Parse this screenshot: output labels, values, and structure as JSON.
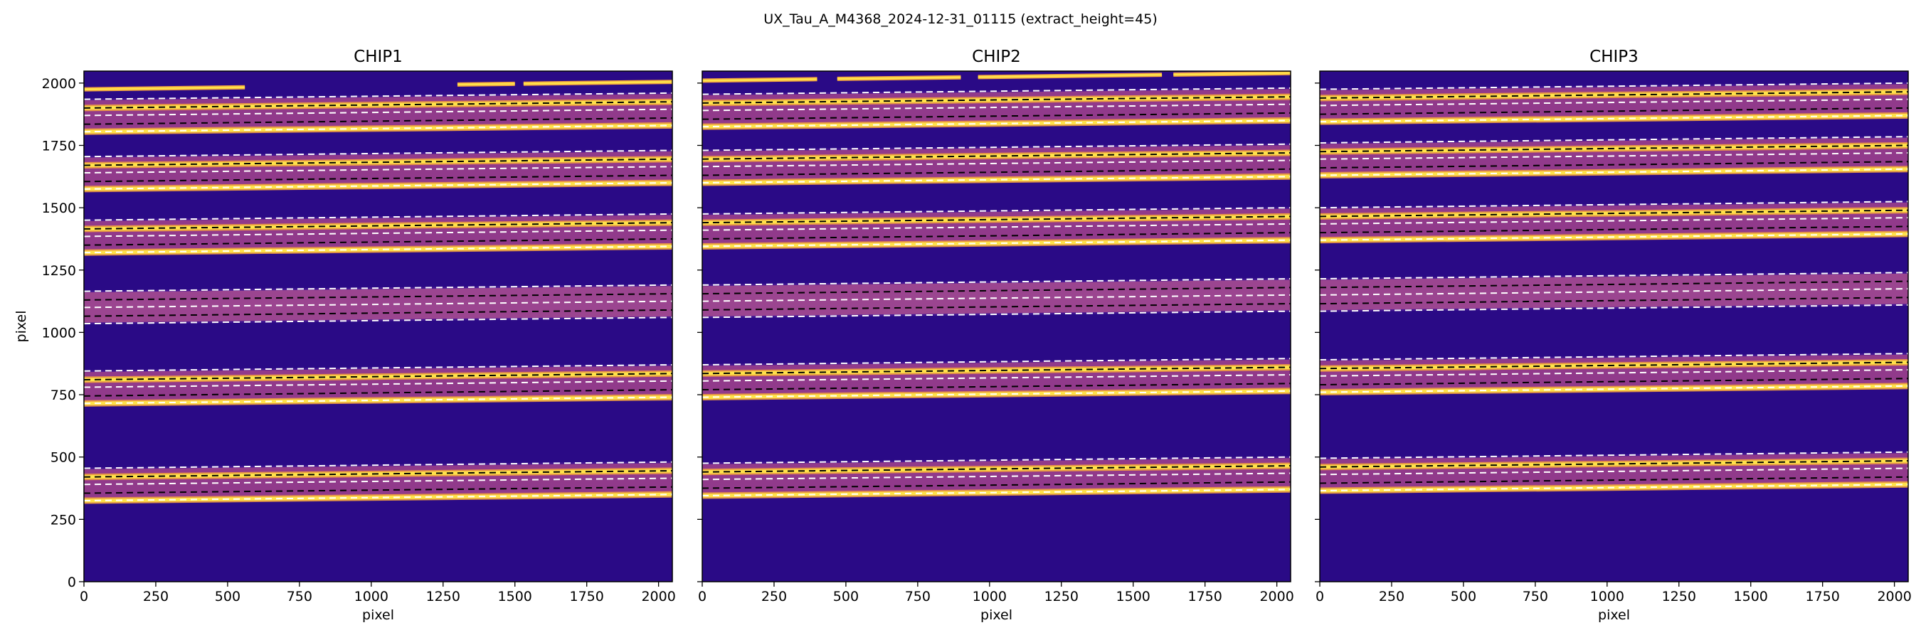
{
  "figure": {
    "suptitle": "UX_Tau_A_M4368_2024-12-31_01115  (extract_height=45)"
  },
  "colors": {
    "background": "#2a0a86",
    "band_faint": "#4a1a98",
    "band_mid": "#9a3e8a",
    "trace_bright": "#ffe24a",
    "trace_edge": "#f0a040",
    "dashed_line": "#ffffff",
    "center_line": "#000000"
  },
  "chart_data": [
    {
      "type": "heatmap",
      "title": "CHIP1",
      "xlabel": "pixel",
      "ylabel": "pixel",
      "xlim": [
        0,
        2048
      ],
      "ylim": [
        0,
        2048
      ],
      "xticks": [
        0,
        250,
        500,
        750,
        1000,
        1250,
        1500,
        1750,
        2000
      ],
      "yticks": [
        0,
        250,
        500,
        750,
        1000,
        1250,
        1500,
        1750,
        2000
      ],
      "orders": [
        {
          "center_left": 355,
          "center_right": 380,
          "lines": [
            -30,
            0,
            35,
            65,
            100
          ],
          "bright": [
            -30,
            65
          ]
        },
        {
          "center_left": 745,
          "center_right": 770,
          "lines": [
            -30,
            0,
            35,
            65,
            100
          ],
          "bright": [
            -30,
            65
          ]
        },
        {
          "center_left": 1065,
          "center_right": 1090,
          "lines": [
            -30,
            0,
            35,
            65,
            100
          ],
          "bright": []
        },
        {
          "center_left": 1350,
          "center_right": 1375,
          "lines": [
            -30,
            0,
            35,
            65,
            100
          ],
          "bright": [
            -30,
            65
          ]
        },
        {
          "center_left": 1605,
          "center_right": 1630,
          "lines": [
            -30,
            0,
            35,
            65,
            100
          ],
          "bright": [
            -30,
            65
          ]
        },
        {
          "center_left": 1835,
          "center_right": 1860,
          "lines": [
            -30,
            0,
            35,
            65,
            100
          ],
          "bright": [
            -30,
            65
          ]
        }
      ],
      "top_streak": {
        "y_left": 1975,
        "y_right": 2005
      }
    },
    {
      "type": "heatmap",
      "title": "CHIP2",
      "xlabel": "pixel",
      "ylabel": "",
      "xlim": [
        0,
        2048
      ],
      "ylim": [
        0,
        2048
      ],
      "xticks": [
        0,
        250,
        500,
        750,
        1000,
        1250,
        1500,
        1750,
        2000
      ],
      "yticks": [],
      "orders": [
        {
          "center_left": 375,
          "center_right": 400,
          "lines": [
            -30,
            0,
            35,
            65,
            100
          ],
          "bright": [
            -30,
            65
          ]
        },
        {
          "center_left": 770,
          "center_right": 795,
          "lines": [
            -30,
            0,
            35,
            65,
            100
          ],
          "bright": [
            -30,
            65
          ]
        },
        {
          "center_left": 1090,
          "center_right": 1115,
          "lines": [
            -30,
            0,
            35,
            65,
            100
          ],
          "bright": []
        },
        {
          "center_left": 1375,
          "center_right": 1400,
          "lines": [
            -30,
            0,
            35,
            65,
            100
          ],
          "bright": [
            -30,
            65
          ]
        },
        {
          "center_left": 1630,
          "center_right": 1655,
          "lines": [
            -30,
            0,
            35,
            65,
            100
          ],
          "bright": [
            -30,
            65
          ]
        },
        {
          "center_left": 1855,
          "center_right": 1880,
          "lines": [
            -30,
            0,
            35,
            65,
            100
          ],
          "bright": [
            -30,
            65
          ]
        }
      ],
      "top_streak": {
        "y_left": 2010,
        "y_right": 2040
      }
    },
    {
      "type": "heatmap",
      "title": "CHIP3",
      "xlabel": "pixel",
      "ylabel": "",
      "xlim": [
        0,
        2048
      ],
      "ylim": [
        0,
        2048
      ],
      "xticks": [
        0,
        250,
        500,
        750,
        1000,
        1250,
        1500,
        1750,
        2000
      ],
      "yticks": [],
      "orders": [
        {
          "center_left": 395,
          "center_right": 420,
          "lines": [
            -30,
            0,
            35,
            65,
            100
          ],
          "bright": [
            -30,
            65
          ]
        },
        {
          "center_left": 790,
          "center_right": 815,
          "lines": [
            -30,
            0,
            35,
            65,
            100
          ],
          "bright": [
            -30,
            65
          ]
        },
        {
          "center_left": 1115,
          "center_right": 1140,
          "lines": [
            -30,
            0,
            35,
            65,
            100
          ],
          "bright": []
        },
        {
          "center_left": 1400,
          "center_right": 1425,
          "lines": [
            -30,
            0,
            35,
            65,
            100
          ],
          "bright": [
            -30,
            65
          ]
        },
        {
          "center_left": 1660,
          "center_right": 1685,
          "lines": [
            -30,
            0,
            35,
            65,
            100
          ],
          "bright": [
            -30,
            65
          ]
        },
        {
          "center_left": 1875,
          "center_right": 1900,
          "lines": [
            -30,
            0,
            35,
            65,
            100
          ],
          "bright": [
            -30,
            65
          ]
        }
      ],
      "top_streak": null
    }
  ]
}
